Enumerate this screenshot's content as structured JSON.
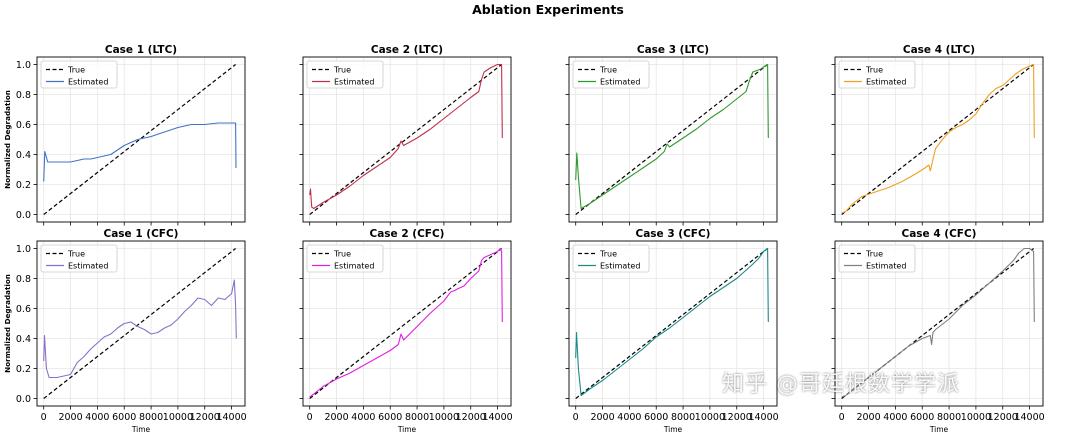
{
  "figure": {
    "title": "Ablation Experiments",
    "watermark": "知乎 @哥廷根数学学派"
  },
  "chart_data": [
    {
      "type": "line",
      "title": "Case 1 (LTC)",
      "xlabel": "",
      "ylabel": "Normalized Degradation",
      "xlim": [
        -500,
        15000
      ],
      "ylim": [
        -0.05,
        1.05
      ],
      "xticks": [],
      "yticks": [
        "0.0",
        "0.2",
        "0.4",
        "0.6",
        "0.8",
        "1.0"
      ],
      "grid": true,
      "legend": "top-left",
      "series": [
        {
          "name": "True",
          "color": "#000000",
          "dashed": true,
          "x": [
            0,
            14300
          ],
          "y": [
            0,
            1.0
          ]
        },
        {
          "name": "Estimated",
          "color": "#4472c4",
          "x": [
            0,
            80,
            300,
            600,
            1000,
            1500,
            2000,
            2500,
            3000,
            3500,
            4000,
            4500,
            5000,
            5500,
            6000,
            6500,
            7000,
            7500,
            8000,
            9000,
            10000,
            11000,
            12000,
            13000,
            14000,
            14300,
            14330
          ],
          "y": [
            0.22,
            0.42,
            0.35,
            0.35,
            0.35,
            0.35,
            0.35,
            0.36,
            0.37,
            0.37,
            0.38,
            0.39,
            0.4,
            0.43,
            0.46,
            0.48,
            0.5,
            0.51,
            0.52,
            0.55,
            0.58,
            0.6,
            0.6,
            0.61,
            0.61,
            0.61,
            0.31
          ]
        }
      ]
    },
    {
      "type": "line",
      "title": "Case 2 (LTC)",
      "xlabel": "",
      "ylabel": "",
      "xlim": [
        -500,
        15000
      ],
      "ylim": [
        -0.05,
        1.05
      ],
      "xticks": [],
      "yticks": [],
      "grid": true,
      "legend": "top-left",
      "series": [
        {
          "name": "True",
          "color": "#000000",
          "dashed": true,
          "x": [
            0,
            14300
          ],
          "y": [
            0,
            1.0
          ]
        },
        {
          "name": "Estimated",
          "color": "#c0304a",
          "x": [
            0,
            60,
            150,
            300,
            1000,
            2000,
            3000,
            4000,
            5000,
            6000,
            6600,
            6800,
            7000,
            8000,
            9000,
            10000,
            11000,
            12000,
            12600,
            12800,
            13000,
            13500,
            14000,
            14300,
            14350
          ],
          "y": [
            0.13,
            0.17,
            0.05,
            0.04,
            0.08,
            0.13,
            0.19,
            0.26,
            0.32,
            0.38,
            0.44,
            0.49,
            0.46,
            0.51,
            0.57,
            0.64,
            0.71,
            0.78,
            0.82,
            0.9,
            0.95,
            0.98,
            1.0,
            1.0,
            0.51
          ]
        }
      ]
    },
    {
      "type": "line",
      "title": "Case 3 (LTC)",
      "xlabel": "",
      "ylabel": "",
      "xlim": [
        -500,
        15000
      ],
      "ylim": [
        -0.05,
        1.05
      ],
      "xticks": [],
      "yticks": [],
      "grid": true,
      "legend": "top-left",
      "series": [
        {
          "name": "True",
          "color": "#000000",
          "dashed": true,
          "x": [
            0,
            14300
          ],
          "y": [
            0,
            1.0
          ]
        },
        {
          "name": "Estimated",
          "color": "#2e9a2e",
          "x": [
            0,
            80,
            200,
            400,
            1000,
            2000,
            3000,
            4000,
            5000,
            6000,
            6600,
            6800,
            7000,
            8000,
            9000,
            10000,
            11000,
            12000,
            12700,
            12900,
            13200,
            13800,
            14100,
            14300,
            14350
          ],
          "y": [
            0.23,
            0.41,
            0.25,
            0.04,
            0.07,
            0.13,
            0.19,
            0.25,
            0.31,
            0.37,
            0.42,
            0.47,
            0.45,
            0.51,
            0.57,
            0.64,
            0.7,
            0.77,
            0.82,
            0.88,
            0.95,
            0.97,
            0.99,
            1.0,
            0.51
          ]
        }
      ]
    },
    {
      "type": "line",
      "title": "Case 4 (LTC)",
      "xlabel": "",
      "ylabel": "",
      "xlim": [
        -500,
        15000
      ],
      "ylim": [
        -0.05,
        1.05
      ],
      "xticks": [],
      "yticks": [],
      "grid": true,
      "legend": "top-left",
      "series": [
        {
          "name": "True",
          "color": "#000000",
          "dashed": true,
          "x": [
            0,
            14300
          ],
          "y": [
            0,
            1.0
          ]
        },
        {
          "name": "Estimated",
          "color": "#f0a020",
          "x": [
            0,
            300,
            800,
            1500,
            2500,
            3500,
            4500,
            5500,
            6200,
            6500,
            6600,
            6800,
            7000,
            7500,
            8000,
            8500,
            9000,
            9500,
            10000,
            10500,
            11000,
            11500,
            12000,
            12500,
            13000,
            13500,
            14000,
            14300,
            14350
          ],
          "y": [
            0.01,
            0.02,
            0.07,
            0.12,
            0.15,
            0.18,
            0.22,
            0.27,
            0.31,
            0.33,
            0.29,
            0.37,
            0.44,
            0.5,
            0.55,
            0.58,
            0.6,
            0.63,
            0.67,
            0.74,
            0.8,
            0.84,
            0.86,
            0.9,
            0.94,
            0.97,
            0.99,
            1.0,
            0.51
          ]
        }
      ]
    },
    {
      "type": "line",
      "title": "Case 1 (CFC)",
      "xlabel": "Time",
      "ylabel": "Normalized Degradation",
      "xlim": [
        -500,
        15000
      ],
      "ylim": [
        -0.05,
        1.05
      ],
      "xticks": [
        "0",
        "2000",
        "4000",
        "6000",
        "8000",
        "10000",
        "12000",
        "14000"
      ],
      "yticks": [
        "0.0",
        "0.2",
        "0.4",
        "0.6",
        "0.8",
        "1.0"
      ],
      "grid": true,
      "legend": "top-left",
      "series": [
        {
          "name": "True",
          "color": "#000000",
          "dashed": true,
          "x": [
            0,
            14300
          ],
          "y": [
            0,
            1.0
          ]
        },
        {
          "name": "Estimated",
          "color": "#8a70c8",
          "x": [
            0,
            60,
            200,
            400,
            1000,
            2000,
            2500,
            3000,
            3500,
            4000,
            4500,
            5000,
            5500,
            6000,
            6500,
            7000,
            7500,
            8000,
            8500,
            9000,
            9500,
            10000,
            10500,
            11000,
            11500,
            12000,
            12500,
            13000,
            13500,
            14000,
            14200,
            14300,
            14350
          ],
          "y": [
            0.25,
            0.42,
            0.2,
            0.14,
            0.14,
            0.16,
            0.24,
            0.28,
            0.33,
            0.37,
            0.41,
            0.43,
            0.47,
            0.5,
            0.51,
            0.48,
            0.46,
            0.43,
            0.44,
            0.47,
            0.49,
            0.53,
            0.58,
            0.62,
            0.67,
            0.66,
            0.62,
            0.67,
            0.66,
            0.7,
            0.79,
            0.62,
            0.4
          ]
        }
      ]
    },
    {
      "type": "line",
      "title": "Case 2 (CFC)",
      "xlabel": "Time",
      "ylabel": "",
      "xlim": [
        -500,
        15000
      ],
      "ylim": [
        -0.05,
        1.05
      ],
      "xticks": [
        "0",
        "2000",
        "4000",
        "6000",
        "8000",
        "10000",
        "12000",
        "14000"
      ],
      "yticks": [],
      "grid": true,
      "legend": "top-left",
      "series": [
        {
          "name": "True",
          "color": "#000000",
          "dashed": true,
          "x": [
            0,
            14300
          ],
          "y": [
            0,
            1.0
          ]
        },
        {
          "name": "Estimated",
          "color": "#e020e0",
          "x": [
            0,
            300,
            1000,
            2000,
            3000,
            4000,
            5000,
            6000,
            6600,
            6800,
            7000,
            8000,
            9000,
            10000,
            10500,
            10800,
            11000,
            11500,
            12000,
            12600,
            12800,
            13000,
            13500,
            14000,
            14200,
            14300,
            14350
          ],
          "y": [
            0.01,
            0.03,
            0.08,
            0.13,
            0.17,
            0.22,
            0.27,
            0.32,
            0.36,
            0.43,
            0.39,
            0.48,
            0.57,
            0.65,
            0.71,
            0.72,
            0.73,
            0.75,
            0.8,
            0.85,
            0.92,
            0.94,
            0.96,
            0.98,
            1.0,
            0.98,
            0.51
          ]
        }
      ]
    },
    {
      "type": "line",
      "title": "Case 3 (CFC)",
      "xlabel": "Time",
      "ylabel": "",
      "xlim": [
        -500,
        15000
      ],
      "ylim": [
        -0.05,
        1.05
      ],
      "xticks": [
        "0",
        "2000",
        "4000",
        "6000",
        "8000",
        "10000",
        "12000",
        "14000"
      ],
      "yticks": [],
      "grid": true,
      "legend": "top-left",
      "series": [
        {
          "name": "True",
          "color": "#000000",
          "dashed": true,
          "x": [
            0,
            14300
          ],
          "y": [
            0,
            1.0
          ]
        },
        {
          "name": "Estimated",
          "color": "#1a8a8a",
          "x": [
            0,
            60,
            200,
            400,
            1000,
            2000,
            3000,
            4000,
            5000,
            6000,
            7000,
            8000,
            9000,
            10000,
            11000,
            12000,
            13000,
            13600,
            14000,
            14300,
            14350
          ],
          "y": [
            0.27,
            0.44,
            0.2,
            0.02,
            0.06,
            0.12,
            0.19,
            0.26,
            0.33,
            0.41,
            0.47,
            0.54,
            0.61,
            0.68,
            0.74,
            0.8,
            0.88,
            0.93,
            0.98,
            1.0,
            0.51
          ]
        }
      ]
    },
    {
      "type": "line",
      "title": "Case 4 (CFC)",
      "xlabel": "Time",
      "ylabel": "",
      "xlim": [
        -500,
        15000
      ],
      "ylim": [
        -0.05,
        1.05
      ],
      "xticks": [
        "0",
        "2000",
        "4000",
        "6000",
        "8000",
        "10000",
        "12000",
        "14000"
      ],
      "yticks": [],
      "grid": true,
      "legend": "top-left",
      "series": [
        {
          "name": "True",
          "color": "#000000",
          "dashed": true,
          "x": [
            0,
            14300
          ],
          "y": [
            0,
            1.0
          ]
        },
        {
          "name": "Estimated",
          "color": "#808080",
          "x": [
            0,
            300,
            1000,
            2000,
            3000,
            4000,
            5000,
            6000,
            6600,
            6700,
            6800,
            7000,
            8000,
            9000,
            10000,
            11000,
            12000,
            12800,
            13200,
            13600,
            14000,
            14300,
            14350
          ],
          "y": [
            0.01,
            0.02,
            0.07,
            0.14,
            0.21,
            0.28,
            0.35,
            0.4,
            0.42,
            0.36,
            0.44,
            0.46,
            0.53,
            0.62,
            0.69,
            0.77,
            0.85,
            0.92,
            0.97,
            1.0,
            1.0,
            0.98,
            0.51
          ]
        }
      ]
    }
  ]
}
